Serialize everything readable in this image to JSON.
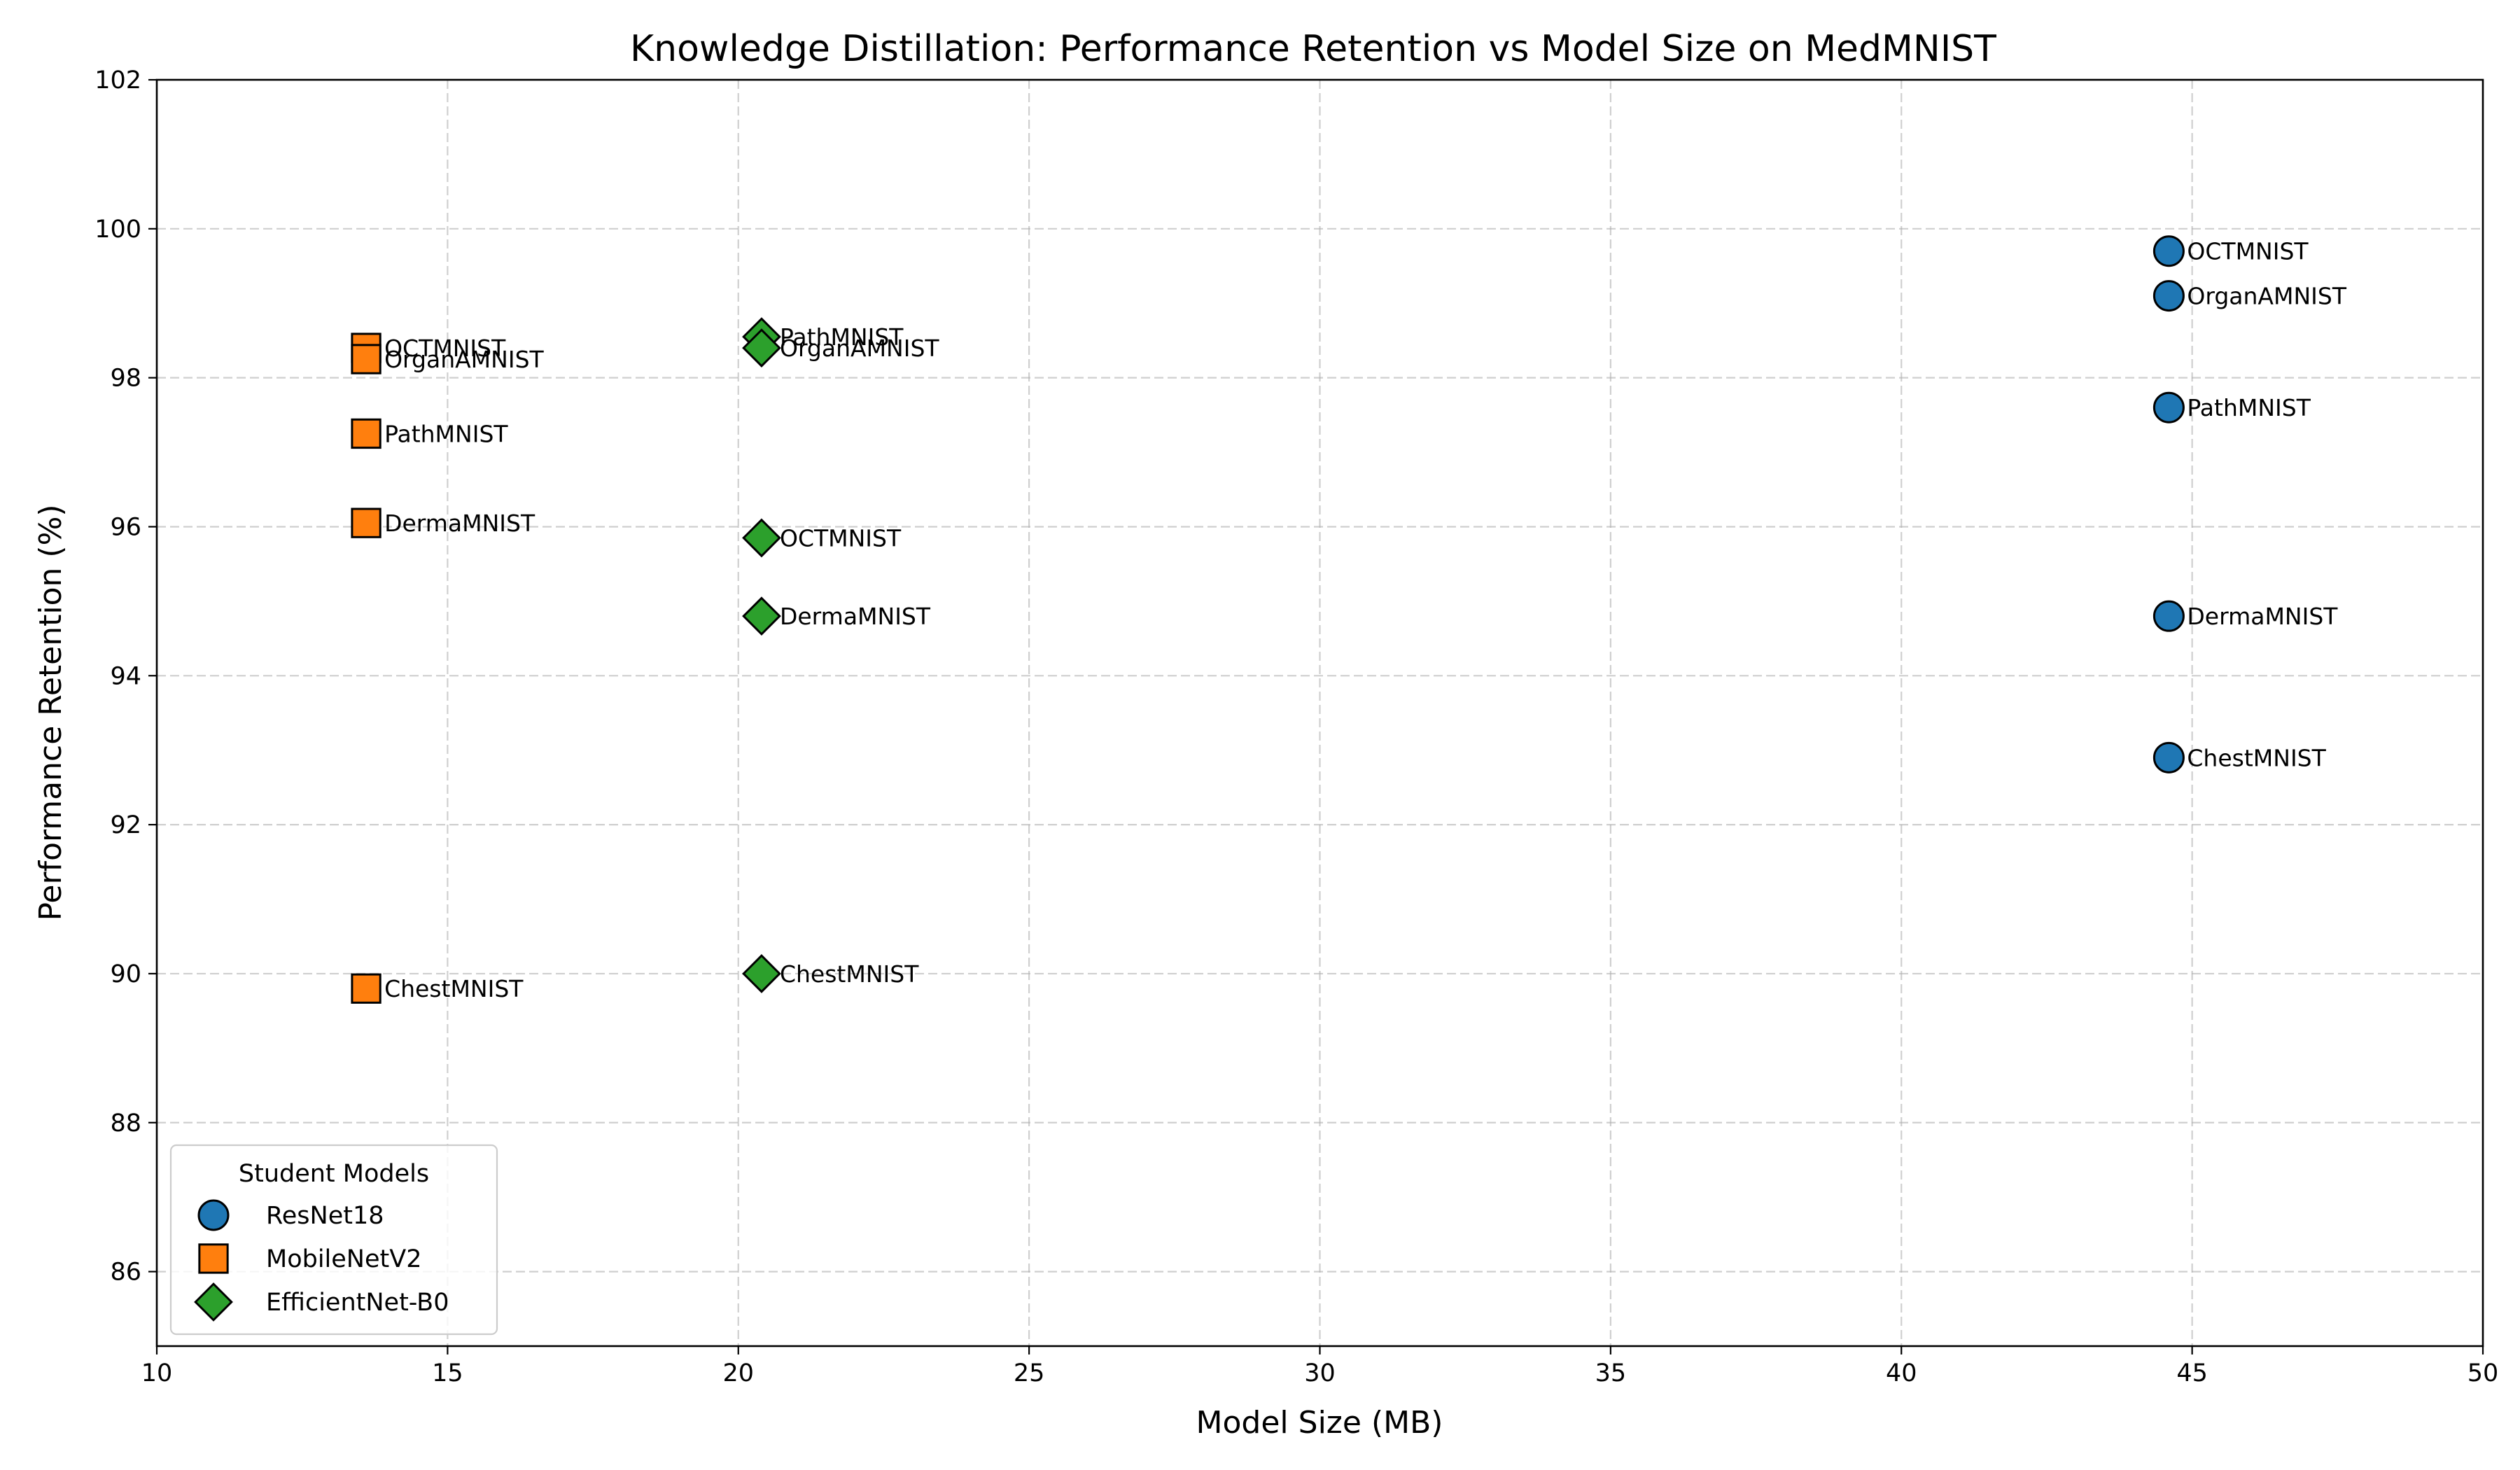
{
  "chart_data": {
    "type": "scatter",
    "title": "Knowledge Distillation: Performance Retention vs Model Size on MedMNIST",
    "xlabel": "Model Size (MB)",
    "ylabel": "Performance Retention (%)",
    "xlim": [
      10,
      50
    ],
    "ylim": [
      85,
      102
    ],
    "xticks": [
      10,
      15,
      20,
      25,
      30,
      35,
      40,
      45,
      50
    ],
    "yticks": [
      86,
      88,
      90,
      92,
      94,
      96,
      98,
      100,
      102
    ],
    "grid": true,
    "legend": {
      "title": "Student Models",
      "placement": "lower-left"
    },
    "series": [
      {
        "name": "ResNet18",
        "marker": "circle",
        "color": "#1f77b4",
        "points": [
          {
            "x": 44.6,
            "y": 99.7,
            "label": "OCTMNIST"
          },
          {
            "x": 44.6,
            "y": 99.1,
            "label": "OrganAMNIST"
          },
          {
            "x": 44.6,
            "y": 97.6,
            "label": "PathMNIST"
          },
          {
            "x": 44.6,
            "y": 94.8,
            "label": "DermaMNIST"
          },
          {
            "x": 44.6,
            "y": 92.9,
            "label": "ChestMNIST"
          }
        ]
      },
      {
        "name": "MobileNetV2",
        "marker": "square",
        "color": "#ff7f0e",
        "points": [
          {
            "x": 13.6,
            "y": 98.4,
            "label": "OCTMNIST"
          },
          {
            "x": 13.6,
            "y": 98.25,
            "label": "OrganAMNIST"
          },
          {
            "x": 13.6,
            "y": 97.25,
            "label": "PathMNIST"
          },
          {
            "x": 13.6,
            "y": 96.05,
            "label": "DermaMNIST"
          },
          {
            "x": 13.6,
            "y": 89.8,
            "label": "ChestMNIST"
          }
        ]
      },
      {
        "name": "EfficientNet-B0",
        "marker": "diamond",
        "color": "#2ca02c",
        "points": [
          {
            "x": 20.4,
            "y": 98.55,
            "label": "PathMNIST"
          },
          {
            "x": 20.4,
            "y": 98.4,
            "label": "OrganAMNIST"
          },
          {
            "x": 20.4,
            "y": 95.85,
            "label": "OCTMNIST"
          },
          {
            "x": 20.4,
            "y": 94.8,
            "label": "DermaMNIST"
          },
          {
            "x": 20.4,
            "y": 90.0,
            "label": "ChestMNIST"
          }
        ]
      }
    ]
  }
}
